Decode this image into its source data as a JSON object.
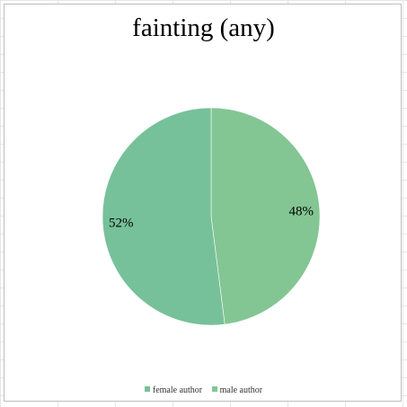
{
  "chart_data": {
    "type": "pie",
    "title": "fainting (any)",
    "categories": [
      "female author",
      "male author"
    ],
    "values": [
      52,
      48
    ],
    "value_labels": [
      "52%",
      "48%"
    ],
    "colors": [
      "#77c19a",
      "#83c693"
    ],
    "legend_position": "bottom",
    "start_angle_deg": -90,
    "direction": "clockwise-from-second"
  }
}
